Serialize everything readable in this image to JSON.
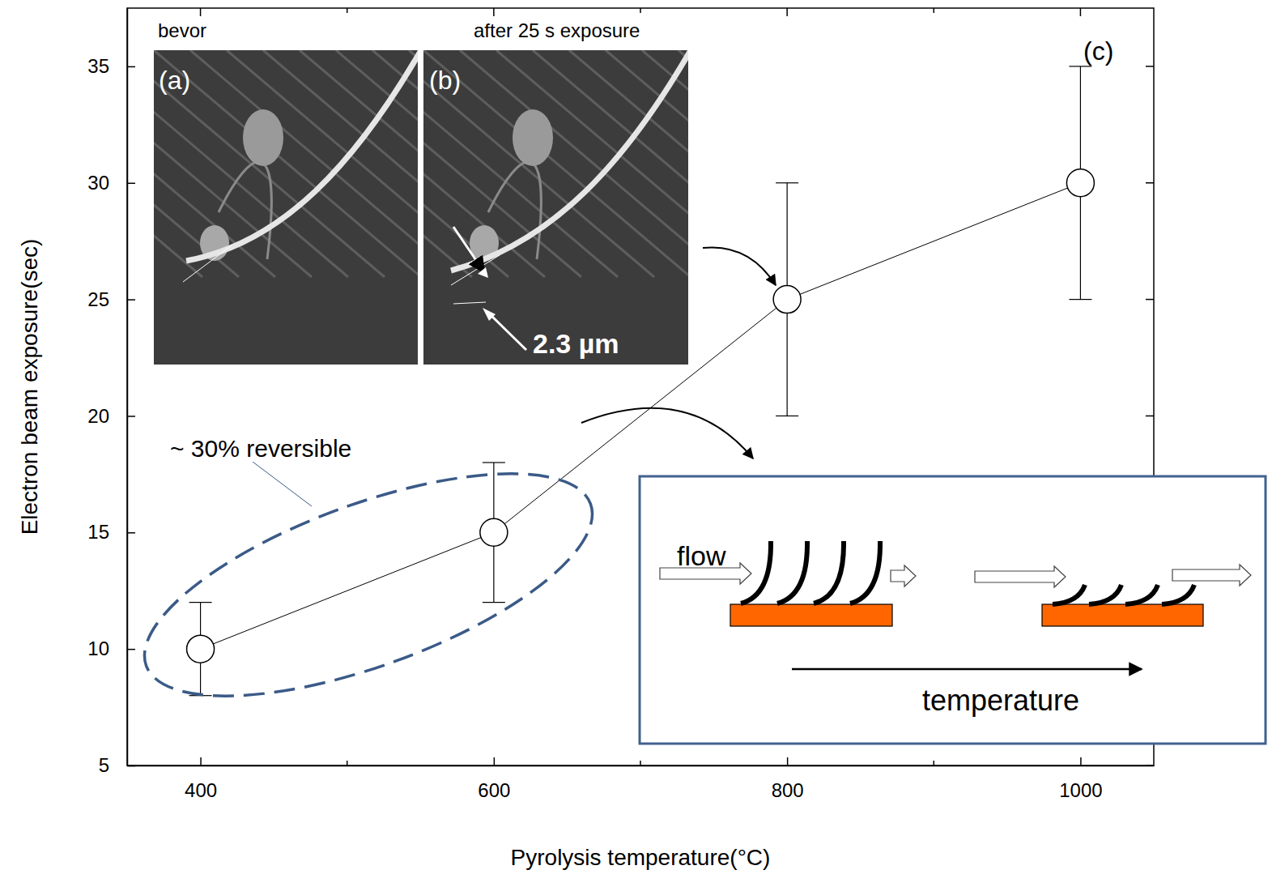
{
  "chart_data": {
    "type": "line",
    "marker": "circle",
    "xlabel": "Pyrolysis temperature(°C)",
    "ylabel": "Electron beam exposure(sec)",
    "x": [
      400,
      600,
      800,
      1000
    ],
    "values": [
      10,
      15,
      25,
      30
    ],
    "errors": [
      2,
      3,
      5,
      5
    ],
    "color": "#000000",
    "xlim": [
      350,
      1050
    ],
    "xticks": [
      400,
      600,
      800,
      1000
    ],
    "xticks_minor": [
      500,
      700,
      900
    ],
    "ylim": [
      5,
      37.5
    ],
    "yticks": [
      5,
      10,
      15,
      20,
      25,
      30,
      35
    ],
    "annotations": {
      "inset_a_caption": "bevor",
      "inset_b_caption": "after 25 s exposure",
      "inset_a_label": "(a)",
      "inset_b_label": "(b)",
      "panel_label": "(c)",
      "scale_bar": "2.3 µm",
      "ellipse_note": "~ 30% reversible",
      "flow": "flow",
      "temperature": "temperature"
    }
  }
}
